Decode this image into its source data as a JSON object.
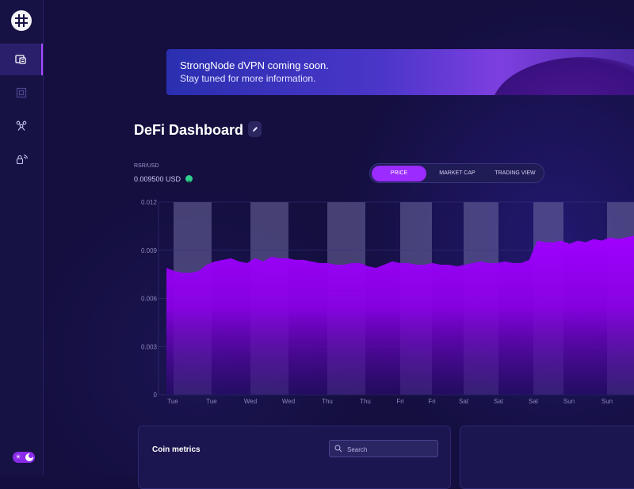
{
  "sidebar": {
    "items": [
      {
        "name": "wallet-icon",
        "active": true
      },
      {
        "name": "node-icon",
        "active": false
      },
      {
        "name": "network-icon",
        "active": false
      },
      {
        "name": "lock-signal-icon",
        "active": false
      }
    ]
  },
  "banner": {
    "line1": "StrongNode dVPN coming soon.",
    "line2": "Stay tuned for more information."
  },
  "page": {
    "title": "DeFi Dashboard"
  },
  "ticker": {
    "pair": "RSR/USD",
    "price": "0.009500 USD"
  },
  "tabs": [
    {
      "label": "PRICE",
      "active": true
    },
    {
      "label": "MARKET CAP",
      "active": false
    },
    {
      "label": "TRADING VIEW",
      "active": false
    }
  ],
  "colors": {
    "accent": "#9b2bff",
    "area_fill": "#a000ff",
    "background": "#140f3f",
    "positive": "#2fd08e"
  },
  "chart_data": {
    "type": "area",
    "ylim": [
      0,
      0.012
    ],
    "yticks": [
      "0.012",
      "0.009",
      "0.006",
      "0.003",
      "0"
    ],
    "xticks": [
      "Tue",
      "Tue",
      "Wed",
      "Wed",
      "Thu",
      "Thu",
      "Fri",
      "Fri",
      "Sat",
      "Sat",
      "Sat",
      "Sun",
      "Sun"
    ],
    "series": [
      {
        "values": [
          0.0079,
          0.0077,
          0.0076,
          0.0076,
          0.0077,
          0.0081,
          0.0083,
          0.0084,
          0.0085,
          0.0083,
          0.0082,
          0.0085,
          0.0083,
          0.0086,
          0.0085,
          0.0085,
          0.0084,
          0.0084,
          0.0083,
          0.0082,
          0.0082,
          0.0081,
          0.0081,
          0.0082,
          0.0082,
          0.008,
          0.0079,
          0.0081,
          0.0083,
          0.0082,
          0.0082,
          0.0081,
          0.0081,
          0.0082,
          0.0081,
          0.0081,
          0.008,
          0.0081,
          0.0082,
          0.0083,
          0.0082,
          0.0082,
          0.0083,
          0.0082,
          0.0082,
          0.0084,
          0.0096,
          0.0095,
          0.0095,
          0.0096,
          0.0094,
          0.0096,
          0.0095,
          0.0097,
          0.0096,
          0.0098,
          0.0097,
          0.0098,
          0.0099
        ]
      }
    ],
    "grid": true
  },
  "metrics": {
    "title": "Coin metrics",
    "search_placeholder": "Search"
  }
}
